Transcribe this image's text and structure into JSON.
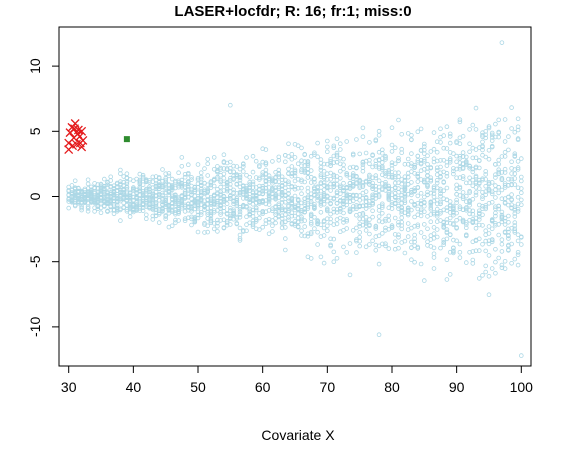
{
  "chart_data": {
    "type": "scatter",
    "title": "LASER+locfdr; R: 16; fr:1; miss:0",
    "xlabel": "Covariate X",
    "ylabel": "",
    "xlim": [
      28.5,
      101.5
    ],
    "ylim": [
      -13,
      13
    ],
    "xticks": [
      30,
      40,
      50,
      60,
      70,
      80,
      90,
      100
    ],
    "xtick_labels": [
      "30",
      "40",
      "50",
      "60",
      "70",
      "80",
      "90",
      "100"
    ],
    "yticks": [
      -10,
      -5,
      0,
      5,
      10
    ],
    "ytick_labels": [
      "-10",
      "-5",
      "0",
      "5",
      "10"
    ],
    "grid": false,
    "legend": "none",
    "series": [
      {
        "marker": "open-circle",
        "color": "#add8e6",
        "distribution": "x uniform on [30, 100]; y centered at 0 with spread growing with x (about ±1 at x=30 to about ±10 at x=100)",
        "extremes": [
          [
            97,
            11.8
          ],
          [
            100,
            -12.2
          ],
          [
            78,
            -10.6
          ],
          [
            55,
            7.0
          ]
        ]
      },
      {
        "marker": "x-cross",
        "color": "#e41a1c",
        "points": [
          [
            30,
            3.6
          ],
          [
            30,
            4.1
          ],
          [
            30.2,
            4.9
          ],
          [
            30.5,
            5.3
          ],
          [
            30.8,
            4.5
          ],
          [
            31,
            5.6
          ],
          [
            31.2,
            4.0
          ],
          [
            31.5,
            5.1
          ],
          [
            31.7,
            4.6
          ],
          [
            32,
            3.8
          ],
          [
            32,
            5.0
          ],
          [
            32.2,
            4.3
          ],
          [
            30.6,
            3.9
          ],
          [
            31.4,
            4.8
          ],
          [
            30.9,
            5.2
          ],
          [
            31.8,
            4.1
          ]
        ]
      },
      {
        "marker": "filled-square",
        "color": "#2e8b2e",
        "points": [
          [
            39,
            4.4
          ]
        ]
      }
    ]
  }
}
